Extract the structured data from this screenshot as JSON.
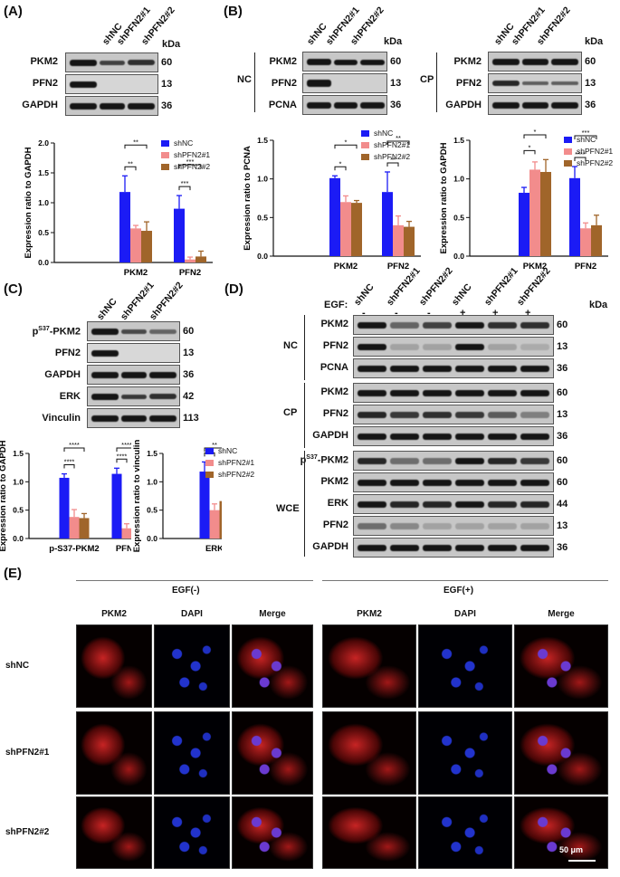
{
  "panels": {
    "A": {
      "label": "(A)"
    },
    "B": {
      "label": "(B)"
    },
    "C": {
      "label": "(C)"
    },
    "D": {
      "label": "(D)"
    },
    "E": {
      "label": "(E)"
    }
  },
  "common": {
    "shNC": "shNC",
    "sh1": "shPFN2#1",
    "sh2": "shPFN2#2",
    "kDa": "kDa"
  },
  "blotA": {
    "rows": [
      {
        "label": "PKM2",
        "mw": "60"
      },
      {
        "label": "PFN2",
        "mw": "13"
      },
      {
        "label": "GAPDH",
        "mw": "36"
      }
    ]
  },
  "blotB_nc": {
    "group": "NC",
    "rows": [
      {
        "label": "PKM2",
        "mw": "60"
      },
      {
        "label": "PFN2",
        "mw": "13"
      },
      {
        "label": "PCNA",
        "mw": "36"
      }
    ]
  },
  "blotB_cp": {
    "group": "CP",
    "rows": [
      {
        "label": "PKM2",
        "mw": "60"
      },
      {
        "label": "PFN2",
        "mw": "13"
      },
      {
        "label": "GAPDH",
        "mw": "36"
      }
    ]
  },
  "blotC": {
    "rows": [
      {
        "label": "pS37-PKM2",
        "mw": "60"
      },
      {
        "label": "PFN2",
        "mw": "13"
      },
      {
        "label": "GAPDH",
        "mw": "36"
      },
      {
        "label": "ERK",
        "mw": "42"
      },
      {
        "label": "Vinculin",
        "mw": "113"
      }
    ]
  },
  "blotD": {
    "egf_label": "EGF:",
    "egf_signs": [
      "-",
      "-",
      "-",
      "+",
      "+",
      "+"
    ],
    "lanes": [
      "shNC",
      "shPFN2#1",
      "shPFN2#2",
      "shNC",
      "shPFN2#1",
      "shPFN2#2"
    ],
    "groups": {
      "nc": "NC",
      "cp": "CP",
      "wce": "WCE"
    },
    "rows": [
      {
        "label": "PKM2",
        "mw": "60"
      },
      {
        "label": "PFN2",
        "mw": "13"
      },
      {
        "label": "PCNA",
        "mw": "36"
      },
      {
        "label": "PKM2",
        "mw": "60"
      },
      {
        "label": "PFN2",
        "mw": "13"
      },
      {
        "label": "GAPDH",
        "mw": "36"
      },
      {
        "label": "pS37-PKM2",
        "mw": "60"
      },
      {
        "label": "PKM2",
        "mw": "60"
      },
      {
        "label": "ERK",
        "mw": "44"
      },
      {
        "label": "PFN2",
        "mw": "13"
      },
      {
        "label": "GAPDH",
        "mw": "36"
      }
    ]
  },
  "chart_data": [
    {
      "id": "A",
      "type": "bar",
      "categories": [
        "PKM2",
        "PFN2"
      ],
      "ylabel": "Expression ratio to GAPDH",
      "ylim": [
        0,
        2.0
      ],
      "yticks": [
        "0.0",
        "0.5",
        "1.0",
        "1.5",
        "2.0"
      ],
      "series": [
        {
          "name": "shNC",
          "color": "#1b1bf5",
          "values": [
            1.18,
            0.9
          ],
          "err": [
            0.27,
            0.22
          ]
        },
        {
          "name": "shPFN2#1",
          "color": "#f28c8c",
          "values": [
            0.57,
            0.05
          ],
          "err": [
            0.05,
            0.04
          ]
        },
        {
          "name": "shPFN2#2",
          "color": "#a0652a",
          "values": [
            0.53,
            0.1
          ],
          "err": [
            0.15,
            0.09
          ]
        }
      ],
      "sig": [
        {
          "label": "**",
          "cat": 0,
          "to": 1,
          "level": 0
        },
        {
          "label": "**",
          "cat": 0,
          "to": 2,
          "level": 1
        },
        {
          "label": "***",
          "cat": 1,
          "to": 1,
          "level": 0
        },
        {
          "label": "***",
          "cat": 1,
          "to": 2,
          "level": 1
        }
      ]
    },
    {
      "id": "B1",
      "type": "bar",
      "categories": [
        "PKM2",
        "PFN2"
      ],
      "ylabel": "Expression ratio to PCNA",
      "ylim": [
        0,
        1.5
      ],
      "yticks": [
        "0.0",
        "0.5",
        "1.0",
        "1.5"
      ],
      "series": [
        {
          "name": "shNC",
          "color": "#1b1bf5",
          "values": [
            1.01,
            0.83
          ],
          "err": [
            0.03,
            0.26
          ]
        },
        {
          "name": "shPFN2#1",
          "color": "#f28c8c",
          "values": [
            0.7,
            0.4
          ],
          "err": [
            0.08,
            0.12
          ]
        },
        {
          "name": "shPFN2#2",
          "color": "#a0652a",
          "values": [
            0.69,
            0.38
          ],
          "err": [
            0.03,
            0.07
          ]
        }
      ],
      "sig": [
        {
          "label": "*",
          "cat": 0,
          "to": 1,
          "level": 0
        },
        {
          "label": "*",
          "cat": 0,
          "to": 2,
          "level": 1
        },
        {
          "label": "**",
          "cat": 1,
          "to": 1,
          "level": 0
        },
        {
          "label": "**",
          "cat": 1,
          "to": 2,
          "level": 1
        }
      ]
    },
    {
      "id": "B2",
      "type": "bar",
      "categories": [
        "PKM2",
        "PFN2"
      ],
      "ylabel": "Expression ratio to GAPDH",
      "ylim": [
        0,
        1.5
      ],
      "yticks": [
        "0.0",
        "0.5",
        "1.0",
        "1.5"
      ],
      "series": [
        {
          "name": "shNC",
          "color": "#1b1bf5",
          "values": [
            0.82,
            1.01
          ],
          "err": [
            0.07,
            0.15
          ]
        },
        {
          "name": "shPFN2#1",
          "color": "#f28c8c",
          "values": [
            1.12,
            0.36
          ],
          "err": [
            0.1,
            0.07
          ]
        },
        {
          "name": "shPFN2#2",
          "color": "#a0652a",
          "values": [
            1.09,
            0.4
          ],
          "err": [
            0.16,
            0.13
          ]
        }
      ],
      "sig": [
        {
          "label": "*",
          "cat": 0,
          "to": 1,
          "level": 0
        },
        {
          "label": "*",
          "cat": 0,
          "to": 2,
          "level": 1
        },
        {
          "label": "****",
          "cat": 1,
          "to": 1,
          "level": 0
        },
        {
          "label": "***",
          "cat": 1,
          "to": 2,
          "level": 1
        }
      ]
    },
    {
      "id": "C1",
      "type": "bar",
      "categories": [
        "p-S37-PKM2",
        "PFN2"
      ],
      "ylabel": "Expression ratio to GAPDH",
      "ylim": [
        0,
        1.5
      ],
      "yticks": [
        "0.0",
        "0.5",
        "1.0",
        "1.5"
      ],
      "series": [
        {
          "name": "shNC",
          "color": "#1b1bf5",
          "values": [
            1.07,
            1.14
          ],
          "err": [
            0.07,
            0.1
          ]
        },
        {
          "name": "shPFN2#1",
          "color": "#f28c8c",
          "values": [
            0.38,
            0.18
          ],
          "err": [
            0.13,
            0.08
          ]
        },
        {
          "name": "shPFN2#2",
          "color": "#a0652a",
          "values": [
            0.36,
            0.19
          ],
          "err": [
            0.08,
            0.17
          ]
        }
      ],
      "sig": [
        {
          "label": "****",
          "cat": 0,
          "to": 1,
          "level": 0
        },
        {
          "label": "****",
          "cat": 0,
          "to": 2,
          "level": 1
        },
        {
          "label": "****",
          "cat": 1,
          "to": 1,
          "level": 0
        },
        {
          "label": "****",
          "cat": 1,
          "to": 2,
          "level": 1
        }
      ]
    },
    {
      "id": "C2",
      "type": "bar",
      "categories": [
        "ERK"
      ],
      "ylabel": "Expression ratio to vinculin",
      "ylim": [
        0,
        1.5
      ],
      "yticks": [
        "0.0",
        "0.5",
        "1.0",
        "1.5"
      ],
      "series": [
        {
          "name": "shNC",
          "color": "#1b1bf5",
          "values": [
            1.18
          ],
          "err": [
            0.17
          ]
        },
        {
          "name": "shPFN2#1",
          "color": "#f28c8c",
          "values": [
            0.5
          ],
          "err": [
            0.11
          ]
        },
        {
          "name": "shPFN2#2",
          "color": "#a0652a",
          "values": [
            0.66
          ],
          "err": [
            0.04
          ]
        }
      ],
      "sig": [
        {
          "label": "***",
          "cat": 0,
          "to": 1,
          "level": 0
        },
        {
          "label": "**",
          "cat": 0,
          "to": 2,
          "level": 1
        }
      ]
    }
  ],
  "micrographs": {
    "egf_minus": "EGF(-)",
    "egf_plus": "EGF(+)",
    "columns": [
      "PKM2",
      "DAPI",
      "Merge",
      "PKM2",
      "DAPI",
      "Merge"
    ],
    "rows": [
      "shNC",
      "shPFN2#1",
      "shPFN2#2"
    ],
    "scale_bar": "50 μm"
  },
  "colors": {
    "shNC": "#1b1bf5",
    "shPFN2#1": "#f28c8c",
    "shPFN2#2": "#a0652a"
  }
}
